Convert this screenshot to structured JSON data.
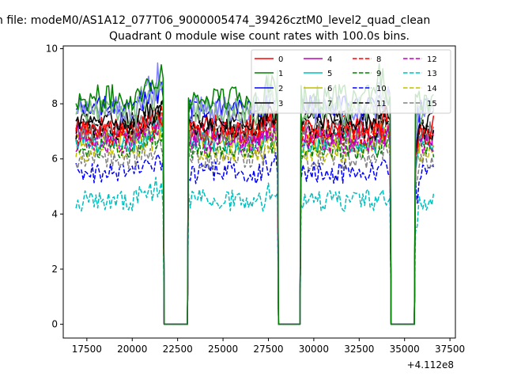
{
  "chart_data": {
    "type": "line",
    "suptitle": "n file: modeM0/AS1A12_077T06_9000005474_39426cztM0_level2_quad_clean",
    "title": "Quadrant 0 module wise count rates with 100.0s bins.",
    "xlabel": "",
    "ylabel": "",
    "x_offset_label": "+4.112e8",
    "xlim": [
      16200,
      37800
    ],
    "ylim": [
      -0.5,
      10.1
    ],
    "xticks": [
      17500,
      20000,
      22500,
      25000,
      27500,
      30000,
      32500,
      35000,
      37500
    ],
    "xtick_labels": [
      "17500",
      "20000",
      "22500",
      "25000",
      "27500",
      "30000",
      "32500",
      "35000",
      "37500"
    ],
    "yticks": [
      0,
      2,
      4,
      6,
      8,
      10
    ],
    "ytick_labels": [
      "0",
      "2",
      "4",
      "6",
      "8",
      "10"
    ],
    "grid": false,
    "legend_position": "top-right",
    "legend_columns": 4,
    "segments": [
      [
        16900,
        21700
      ],
      [
        23100,
        28000
      ],
      [
        29300,
        34200
      ],
      [
        35600,
        36600
      ]
    ],
    "gaps": [
      [
        21700,
        23100
      ],
      [
        28000,
        29300
      ],
      [
        34200,
        35600
      ]
    ],
    "series": [
      {
        "name": "0",
        "color": "#ff0000",
        "dash": "solid",
        "level": 7.2,
        "noise": 0.4,
        "peak": 8.0
      },
      {
        "name": "1",
        "color": "#008000",
        "dash": "solid",
        "level": 8.2,
        "noise": 0.5,
        "peak": 9.6
      },
      {
        "name": "2",
        "color": "#0000ff",
        "dash": "solid",
        "level": 7.9,
        "noise": 0.4,
        "peak": 9.0
      },
      {
        "name": "3",
        "color": "#000000",
        "dash": "solid",
        "level": 7.4,
        "noise": 0.35,
        "peak": 8.3
      },
      {
        "name": "4",
        "color": "#bf00bf",
        "dash": "solid",
        "level": 6.9,
        "noise": 0.4,
        "peak": 7.8
      },
      {
        "name": "5",
        "color": "#00bfbf",
        "dash": "solid",
        "level": 6.6,
        "noise": 0.4,
        "peak": 7.4
      },
      {
        "name": "6",
        "color": "#bfbf00",
        "dash": "solid",
        "level": 6.8,
        "noise": 0.4,
        "peak": 7.6
      },
      {
        "name": "7",
        "color": "#808080",
        "dash": "solid",
        "level": 7.0,
        "noise": 0.4,
        "peak": 7.9
      },
      {
        "name": "8",
        "color": "#ff0000",
        "dash": "dashed",
        "level": 6.9,
        "noise": 0.4,
        "peak": 7.8
      },
      {
        "name": "9",
        "color": "#008000",
        "dash": "dashed",
        "level": 6.4,
        "noise": 0.4,
        "peak": 7.2
      },
      {
        "name": "10",
        "color": "#0000ff",
        "dash": "dashed",
        "level": 5.5,
        "noise": 0.4,
        "peak": 6.3
      },
      {
        "name": "11",
        "color": "#000000",
        "dash": "dashed",
        "level": 7.1,
        "noise": 0.4,
        "peak": 8.0
      },
      {
        "name": "12",
        "color": "#bf00bf",
        "dash": "dashed",
        "level": 6.6,
        "noise": 0.4,
        "peak": 7.4
      },
      {
        "name": "13",
        "color": "#00bfbf",
        "dash": "dashed",
        "level": 4.5,
        "noise": 0.4,
        "peak": 5.2
      },
      {
        "name": "14",
        "color": "#bfbf00",
        "dash": "dashed",
        "level": 6.3,
        "noise": 0.4,
        "peak": 7.1
      },
      {
        "name": "15",
        "color": "#808080",
        "dash": "dashed",
        "level": 6.0,
        "noise": 0.4,
        "peak": 6.8
      },
      {
        "name": "",
        "color": "#8080ff",
        "dash": "solid",
        "level": 7.8,
        "noise": 0.5,
        "peak": 9.4
      },
      {
        "name": "",
        "color": "#80bf80",
        "dash": "solid",
        "level": 7.7,
        "noise": 0.5,
        "peak": 9.7
      }
    ]
  }
}
